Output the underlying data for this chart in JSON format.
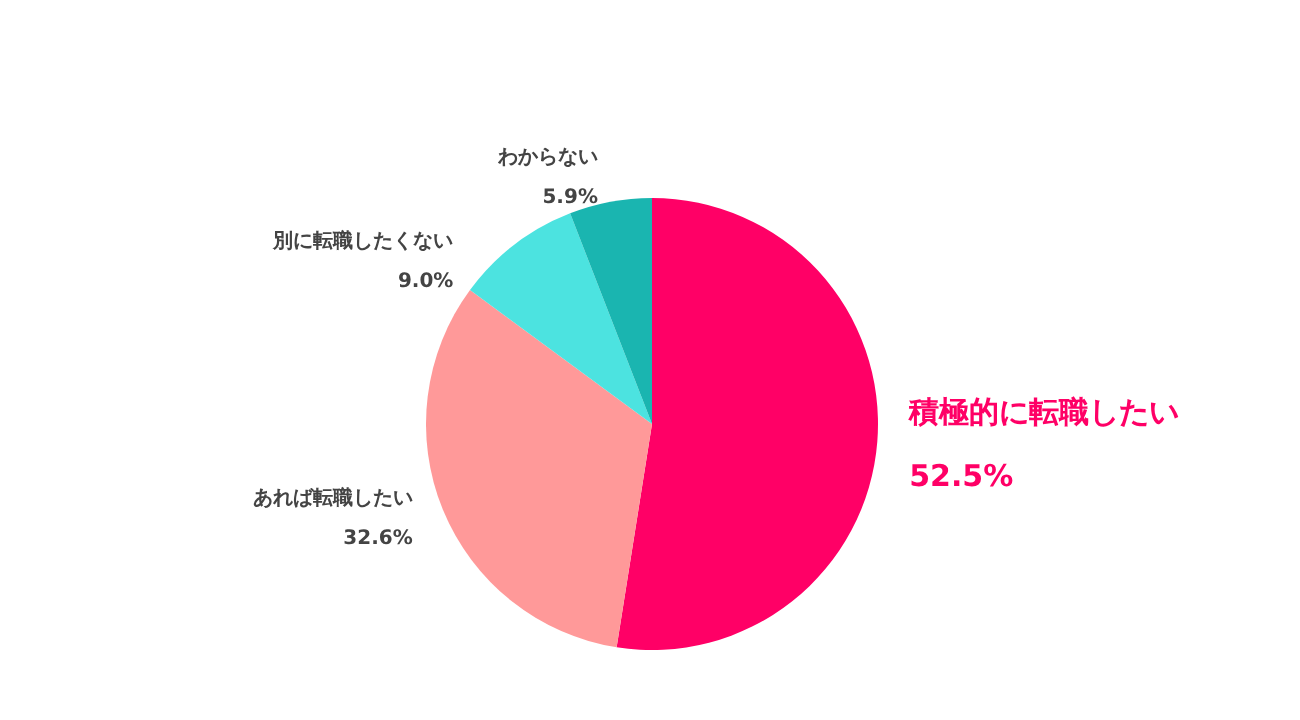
{
  "chart_data": {
    "type": "pie",
    "categories": [
      "積極的に転職したい",
      "あれば転職したい",
      "別に転職したくない",
      "わからない"
    ],
    "values": [
      52.5,
      32.6,
      9.0,
      5.9
    ],
    "colors": [
      "#ff0066",
      "#ff9999",
      "#4ce3e0",
      "#1ab5b0"
    ],
    "value_labels": [
      "52.5%",
      "32.6%",
      "9.0%",
      "5.9%"
    ],
    "legend": false
  }
}
